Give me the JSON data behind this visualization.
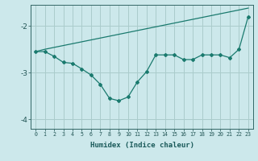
{
  "xlabel": "Humidex (Indice chaleur)",
  "ylabel": "",
  "bg_color": "#cce8eb",
  "grid_color": "#aacccc",
  "line_color": "#1a7a6e",
  "x_data": [
    0,
    1,
    2,
    3,
    4,
    5,
    6,
    7,
    8,
    9,
    10,
    11,
    12,
    13,
    14,
    15,
    16,
    17,
    18,
    19,
    20,
    21,
    22,
    23
  ],
  "y_curve": [
    -2.55,
    -2.55,
    -2.65,
    -2.78,
    -2.8,
    -2.92,
    -3.05,
    -3.25,
    -3.55,
    -3.6,
    -3.52,
    -3.2,
    -2.98,
    -2.62,
    -2.62,
    -2.62,
    -2.72,
    -2.72,
    -2.62,
    -2.62,
    -2.62,
    -2.68,
    -2.5,
    -1.8
  ],
  "y_trend": [
    -2.55,
    -2.5,
    -2.46,
    -2.42,
    -2.38,
    -2.34,
    -2.3,
    -2.26,
    -2.22,
    -2.18,
    -2.14,
    -2.1,
    -2.06,
    -2.02,
    -1.98,
    -1.94,
    -1.9,
    -1.86,
    -1.82,
    -1.78,
    -1.74,
    -1.7,
    -1.66,
    -1.62
  ],
  "ylim": [
    -4.2,
    -1.55
  ],
  "xlim": [
    -0.5,
    23.5
  ],
  "yticks": [
    -4,
    -3,
    -2
  ],
  "xticks": [
    0,
    1,
    2,
    3,
    4,
    5,
    6,
    7,
    8,
    9,
    10,
    11,
    12,
    13,
    14,
    15,
    16,
    17,
    18,
    19,
    20,
    21,
    22,
    23
  ]
}
